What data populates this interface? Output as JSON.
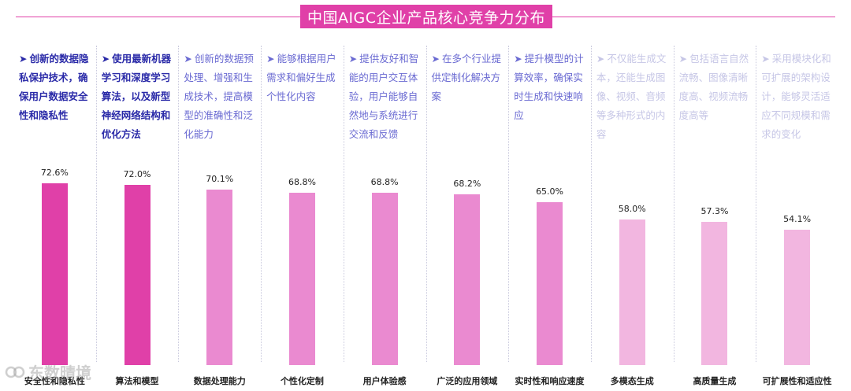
{
  "title": "中国AIGC企业产品核心竞争力分布",
  "watermark": {
    "text": "东数晴境",
    "icon": "logo-mark-icon"
  },
  "colors": {
    "title_bg": "#e040a8",
    "bar_strong": "#e040a8",
    "bar_mid": "#ea8ad0",
    "bar_light": "#f2b6e0"
  },
  "chart_data": {
    "type": "bar",
    "title": "中国AIGC企业产品核心竞争力分布",
    "categories": [
      "安全性和隐私性",
      "算法和模型",
      "数据处理能力",
      "个性化定制",
      "用户体验感",
      "广泛的应用领域",
      "实时性和响应速度",
      "多模态生成",
      "高质量生成",
      "可扩展性和适应性"
    ],
    "values": [
      72.6,
      72.0,
      70.1,
      68.8,
      68.8,
      68.2,
      65.0,
      58.0,
      57.3,
      54.1
    ],
    "value_labels": [
      "72.6%",
      "72.0%",
      "70.1%",
      "68.8%",
      "68.8%",
      "68.2%",
      "65.0%",
      "58.0%",
      "57.3%",
      "54.1%"
    ],
    "descriptions": [
      "创新的数据隐私保护技术，确保用户数据安全性和隐私性",
      "使用最新机器学习和深度学习算法，以及新型神经网络结构和优化方法",
      "创新的数据预处理、增强和生成技术，提高模型的准确性和泛化能力",
      "能够根据用户需求和偏好生成个性化内容",
      "提供友好和智能的用户交互体验，用户能够自然地与系统进行交流和反馈",
      "在多个行业提供定制化解决方案",
      "提升模型的计算效率，确保实时生成和快速响应",
      "不仅能生成文本，还能生成图像、视频、音频等多种形式的内容",
      "包括语言自然流畅、图像清晰度高、视频流畅度高等",
      "采用模块化和可扩展的架构设计，能够灵活适应不同规模和需求的变化"
    ],
    "ylim": [
      0,
      100
    ],
    "grid": false,
    "legend": "none"
  }
}
